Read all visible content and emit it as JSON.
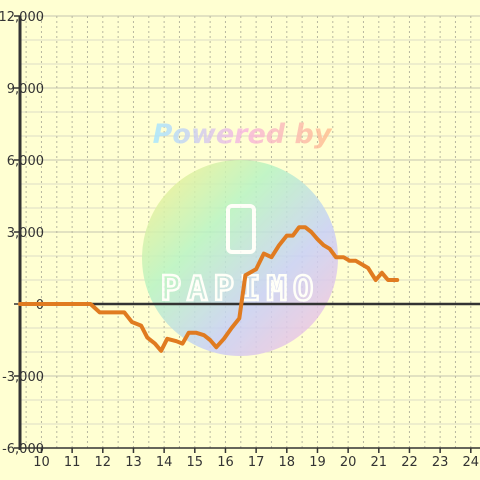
{
  "chart_data": {
    "type": "line",
    "title": "",
    "xlabel": "",
    "ylabel": "",
    "xlim": [
      9.3,
      24.3
    ],
    "ylim": [
      -6000,
      12000
    ],
    "x_ticks": [
      10,
      11,
      12,
      13,
      14,
      15,
      16,
      17,
      18,
      19,
      20,
      21,
      22,
      23,
      24
    ],
    "y_ticks": [
      -6000,
      -3000,
      0,
      3000,
      6000,
      9000,
      12000
    ],
    "y_tick_labels": [
      "-6,000",
      "-3,000",
      "0",
      "3,000",
      "6,000",
      "9,000",
      "12,000"
    ],
    "grid": true,
    "series": [
      {
        "color": "#e07b20",
        "points": [
          [
            9.3,
            0
          ],
          [
            9.8,
            0
          ],
          [
            10.3,
            0
          ],
          [
            10.8,
            0
          ],
          [
            11.3,
            0
          ],
          [
            11.6,
            0
          ],
          [
            11.9,
            -350
          ],
          [
            12.1,
            -350
          ],
          [
            12.4,
            -350
          ],
          [
            12.7,
            -350
          ],
          [
            12.95,
            -750
          ],
          [
            13.25,
            -900
          ],
          [
            13.45,
            -1400
          ],
          [
            13.7,
            -1650
          ],
          [
            13.9,
            -1950
          ],
          [
            14.1,
            -1450
          ],
          [
            14.4,
            -1550
          ],
          [
            14.6,
            -1650
          ],
          [
            14.8,
            -1200
          ],
          [
            15.05,
            -1200
          ],
          [
            15.3,
            -1300
          ],
          [
            15.5,
            -1500
          ],
          [
            15.7,
            -1800
          ],
          [
            15.95,
            -1450
          ],
          [
            16.2,
            -1000
          ],
          [
            16.45,
            -600
          ],
          [
            16.65,
            1200
          ],
          [
            17.0,
            1450
          ],
          [
            17.25,
            2100
          ],
          [
            17.5,
            1950
          ],
          [
            17.75,
            2450
          ],
          [
            18.0,
            2850
          ],
          [
            18.2,
            2850
          ],
          [
            18.4,
            3200
          ],
          [
            18.6,
            3200
          ],
          [
            18.8,
            3000
          ],
          [
            19.0,
            2700
          ],
          [
            19.2,
            2450
          ],
          [
            19.4,
            2300
          ],
          [
            19.6,
            1950
          ],
          [
            19.85,
            1950
          ],
          [
            20.05,
            1800
          ],
          [
            20.25,
            1800
          ],
          [
            20.45,
            1650
          ],
          [
            20.65,
            1500
          ],
          [
            20.9,
            1000
          ],
          [
            21.1,
            1300
          ],
          [
            21.3,
            1000
          ],
          [
            21.6,
            1000
          ]
        ]
      }
    ]
  },
  "watermark": {
    "line1": "Powered by",
    "line2": "PAPIMO"
  }
}
